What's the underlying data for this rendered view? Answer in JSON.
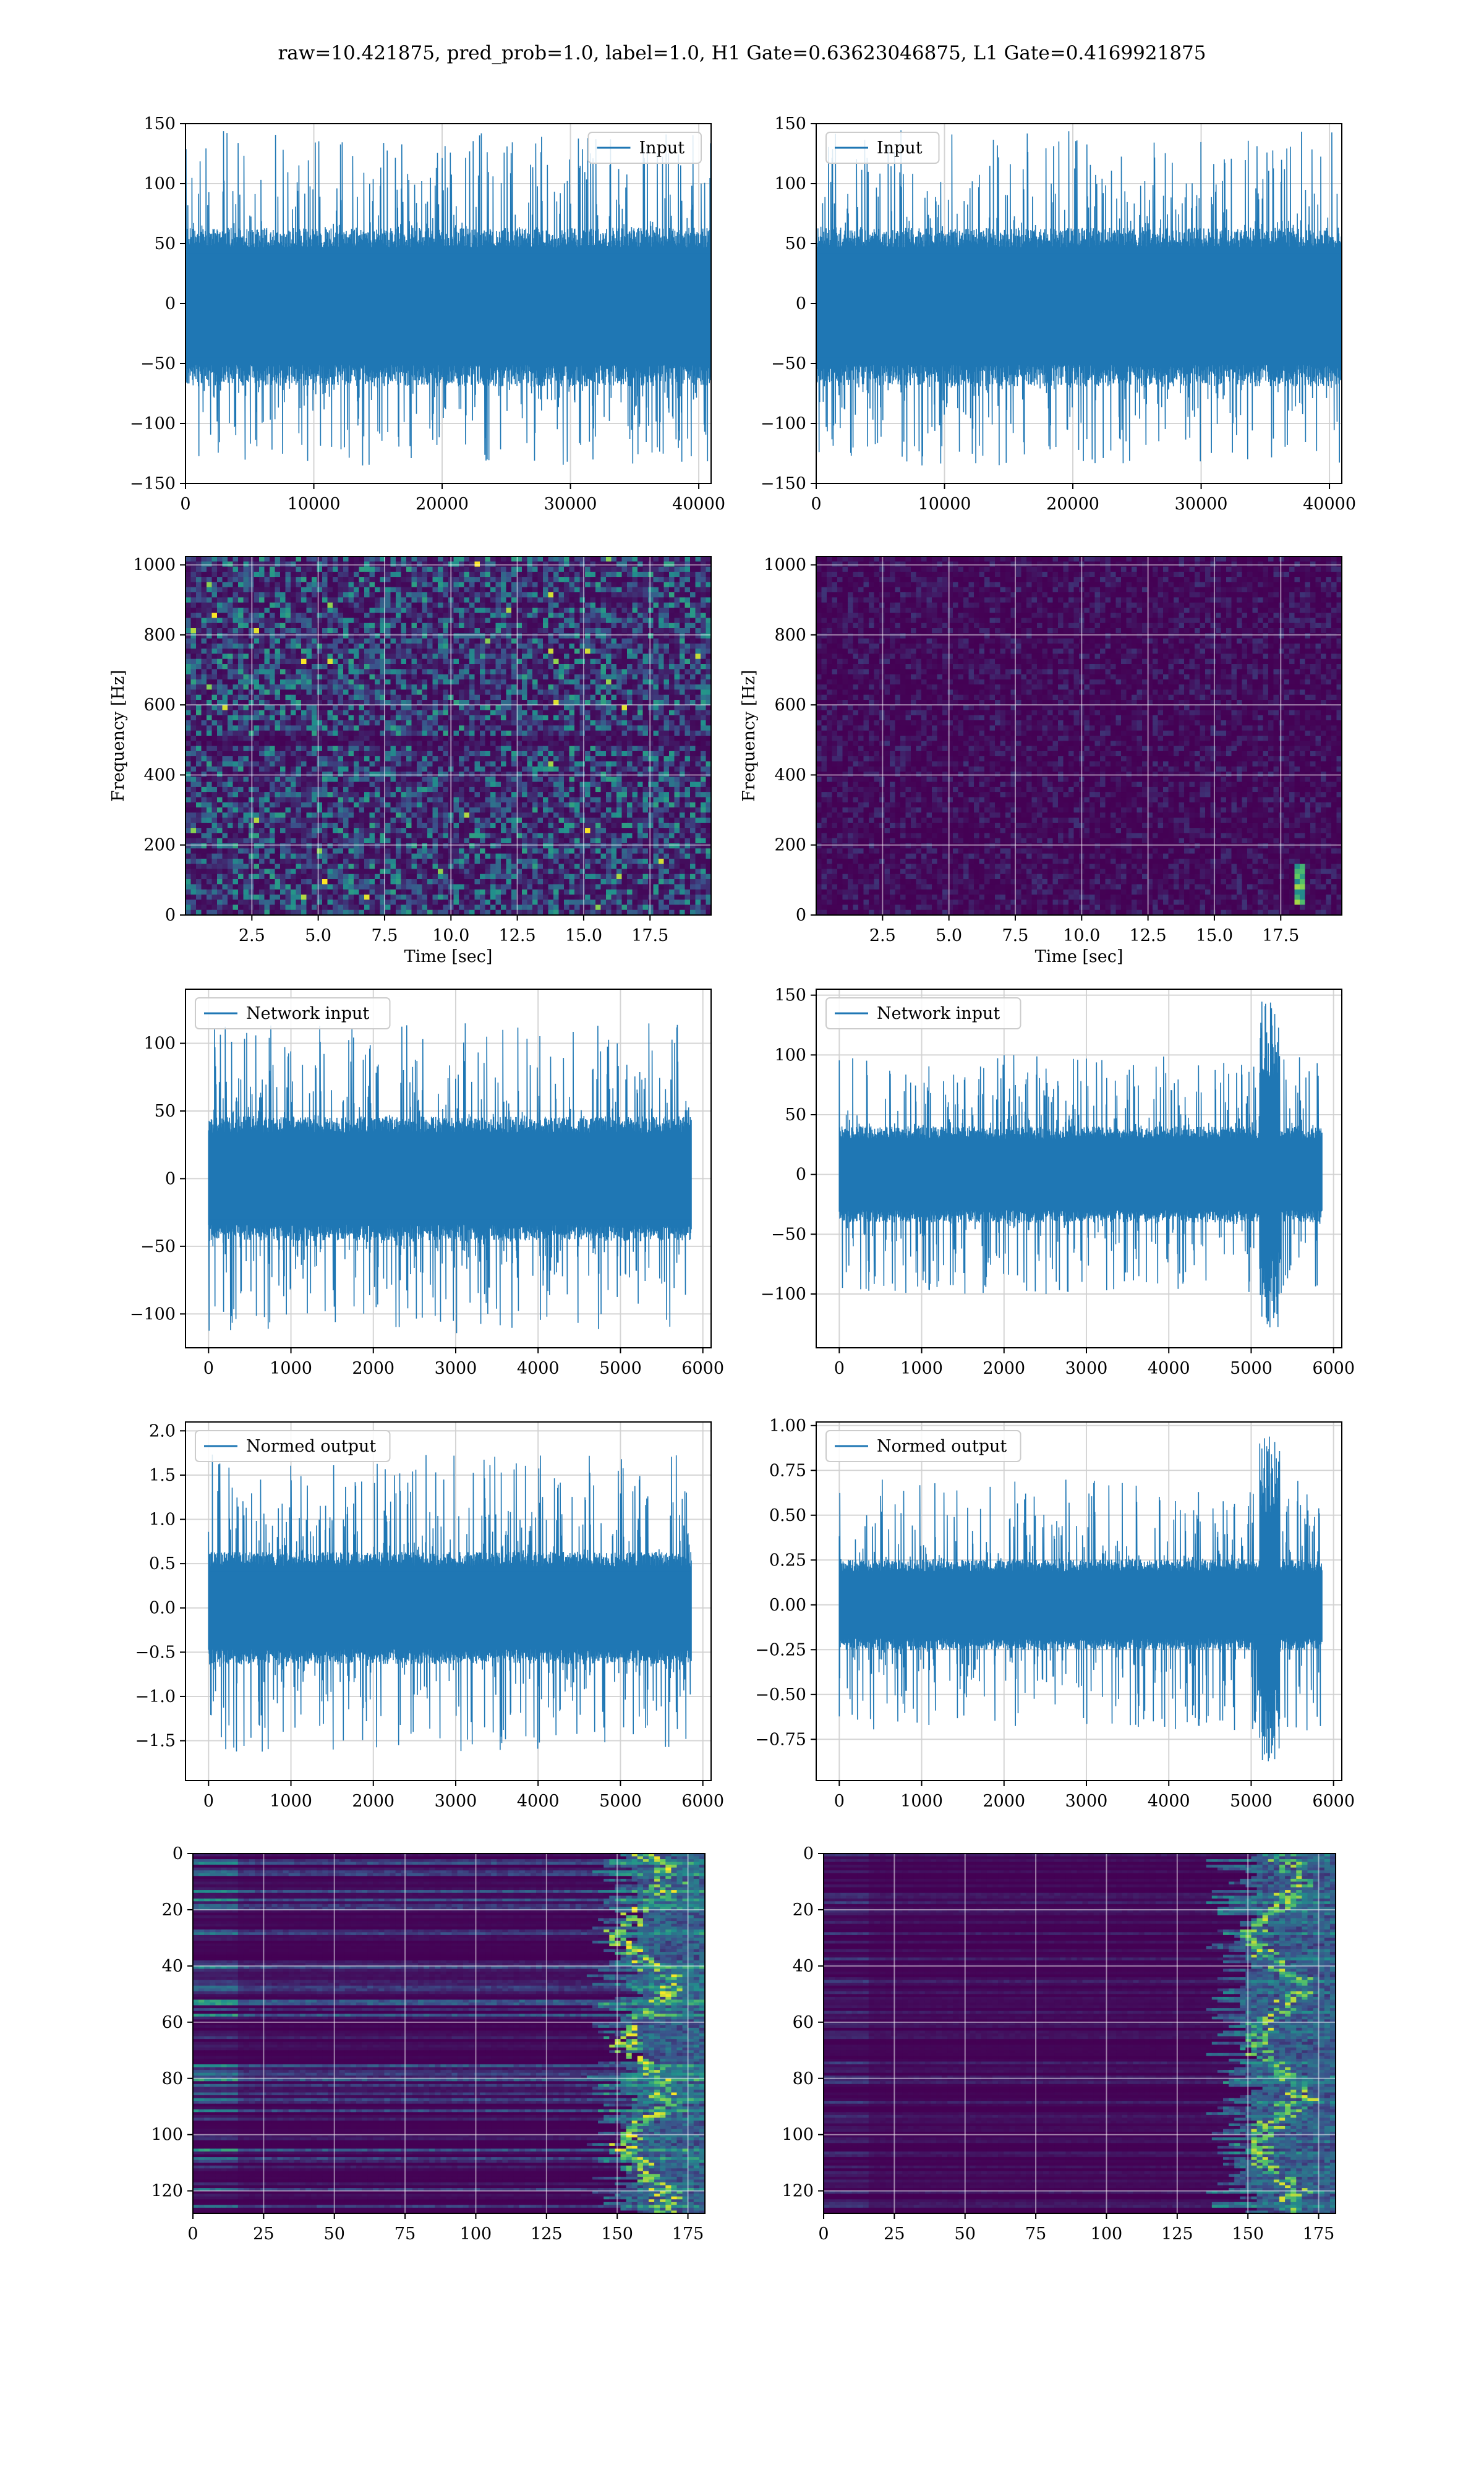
{
  "title": "raw=10.421875, pred_prob=1.0, label=1.0, H1 Gate=0.63623046875, L1 Gate=0.4169921875",
  "colors": {
    "series": "#1f77b4",
    "grid": "#b0b0b0",
    "viridis_low": "#440154",
    "viridis_mid": "#21918c",
    "viridis_high": "#fde725"
  },
  "chart_data": [
    {
      "type": "line",
      "series": [
        {
          "name": "Input"
        }
      ],
      "legend": "upper-right",
      "xlim": [
        0,
        40960
      ],
      "ylim": [
        -150,
        150
      ],
      "xticks": [
        0,
        10000,
        20000,
        30000,
        40000
      ],
      "yticks": [
        -150,
        -100,
        -50,
        0,
        50,
        100,
        150
      ],
      "band": [
        -60,
        55
      ],
      "spike_range": [
        -135,
        145
      ],
      "grid": true
    },
    {
      "type": "line",
      "series": [
        {
          "name": "Input"
        }
      ],
      "legend": "upper-left",
      "xlim": [
        0,
        40960
      ],
      "ylim": [
        -150,
        150
      ],
      "xticks": [
        0,
        10000,
        20000,
        30000,
        40000
      ],
      "yticks": [
        -150,
        -100,
        -50,
        0,
        50,
        100,
        150
      ],
      "band": [
        -60,
        55
      ],
      "spike_range": [
        -135,
        145
      ],
      "grid": true
    },
    {
      "type": "heatmap",
      "xlabel": "Time [sec]",
      "ylabel": "Frequency [Hz]",
      "xlim": [
        0,
        19.8
      ],
      "ylim": [
        0,
        1024
      ],
      "xticks": [
        2.5,
        5.0,
        7.5,
        10.0,
        12.5,
        15.0,
        17.5
      ],
      "yticks": [
        0,
        200,
        400,
        600,
        800,
        1000
      ],
      "intensity": "high-noise",
      "dark_band_hz": [
        480,
        510
      ],
      "grid": true
    },
    {
      "type": "heatmap",
      "xlabel": "Time [sec]",
      "ylabel": "Frequency [Hz]",
      "xlim": [
        0,
        19.8
      ],
      "ylim": [
        0,
        1024
      ],
      "xticks": [
        2.5,
        5.0,
        7.5,
        10.0,
        12.5,
        15.0,
        17.5
      ],
      "yticks": [
        0,
        200,
        400,
        600,
        800,
        1000
      ],
      "intensity": "low-noise",
      "chirp": {
        "t": 18.2,
        "f": [
          30,
          140
        ]
      },
      "grid": true
    },
    {
      "type": "line",
      "series": [
        {
          "name": "Network input"
        }
      ],
      "legend": "upper-left",
      "xlim": [
        -280,
        6100
      ],
      "ylim": [
        -125,
        140
      ],
      "xticks": [
        0,
        1000,
        2000,
        3000,
        4000,
        5000,
        6000
      ],
      "yticks": [
        -100,
        -50,
        0,
        50,
        100
      ],
      "band": [
        -40,
        40
      ],
      "spike_range": [
        -115,
        115
      ],
      "grid": true
    },
    {
      "type": "line",
      "series": [
        {
          "name": "Network input"
        }
      ],
      "legend": "upper-left",
      "xlim": [
        -280,
        6100
      ],
      "ylim": [
        -145,
        155
      ],
      "xticks": [
        0,
        1000,
        2000,
        3000,
        4000,
        5000,
        6000
      ],
      "yticks": [
        -100,
        -50,
        0,
        50,
        100,
        150
      ],
      "band": [
        -35,
        35
      ],
      "spike_range": [
        -100,
        100
      ],
      "burst": {
        "x": [
          5100,
          5350
        ],
        "y": [
          -130,
          145
        ]
      },
      "grid": true
    },
    {
      "type": "line",
      "series": [
        {
          "name": "Normed output"
        }
      ],
      "legend": "upper-left",
      "xlim": [
        -280,
        6100
      ],
      "ylim": [
        -1.95,
        2.1
      ],
      "xticks": [
        0,
        1000,
        2000,
        3000,
        4000,
        5000,
        6000
      ],
      "yticks": [
        -1.5,
        -1.0,
        -0.5,
        0.0,
        0.5,
        1.0,
        1.5,
        2.0
      ],
      "band": [
        -0.55,
        0.55
      ],
      "spike_range": [
        -1.65,
        1.75
      ],
      "grid": true
    },
    {
      "type": "line",
      "series": [
        {
          "name": "Normed output"
        }
      ],
      "legend": "upper-left",
      "xlim": [
        -280,
        6100
      ],
      "ylim": [
        -0.98,
        1.02
      ],
      "xticks": [
        0,
        1000,
        2000,
        3000,
        4000,
        5000,
        6000
      ],
      "yticks": [
        -0.75,
        -0.5,
        -0.25,
        0.0,
        0.25,
        0.5,
        0.75,
        1.0
      ],
      "band": [
        -0.22,
        0.22
      ],
      "spike_range": [
        -0.7,
        0.7
      ],
      "burst": {
        "x": [
          5100,
          5350
        ],
        "y": [
          -0.88,
          0.94
        ]
      },
      "grid": true
    },
    {
      "type": "heatmap",
      "xlim": [
        0,
        181
      ],
      "ylim": [
        128,
        0
      ],
      "xticks": [
        0,
        25,
        50,
        75,
        100,
        125,
        150,
        175
      ],
      "yticks": [
        0,
        20,
        40,
        60,
        80,
        100,
        120
      ],
      "intensity": "row-features",
      "hot_columns": [
        150,
        178
      ],
      "grid": true
    },
    {
      "type": "heatmap",
      "xlim": [
        0,
        181
      ],
      "ylim": [
        128,
        0
      ],
      "xticks": [
        0,
        25,
        50,
        75,
        100,
        125,
        150,
        175
      ],
      "yticks": [
        0,
        20,
        40,
        60,
        80,
        100,
        120
      ],
      "intensity": "row-features-sparse",
      "hot_columns": [
        145,
        178
      ],
      "grid": true
    }
  ]
}
